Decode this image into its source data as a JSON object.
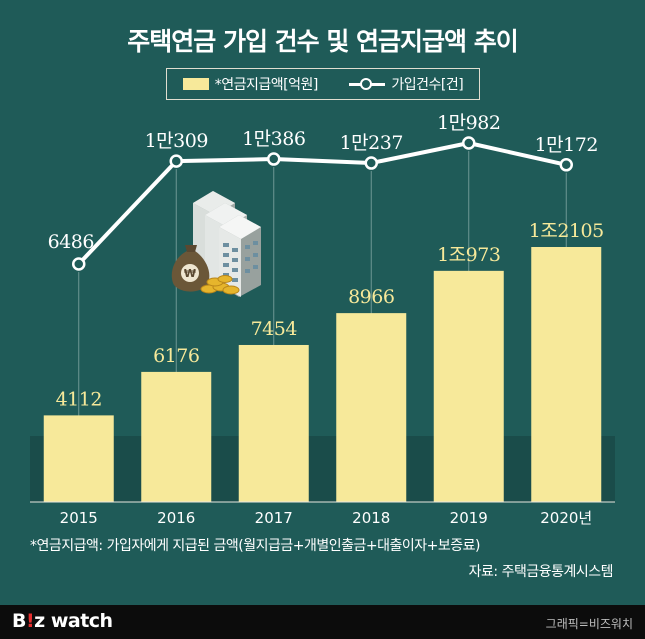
{
  "title": "주택연금 가입 건수 및 연금지급액 추이",
  "legend": {
    "bar_label": "*연금지급액[억원]",
    "line_label": "가입건수[건]"
  },
  "footnote": "*연금지급액: 가입자에게 지급된 금액(월지급금+개별인출금+대출이자+보증료)",
  "source": "자료: 주택금융통계시스템",
  "branding": {
    "logo_main": "B",
    "logo_accent": "!",
    "logo_rest": "z watch",
    "credit": "그래픽=비즈워치"
  },
  "colors": {
    "background": "#1f5b58",
    "band": "#1a4c4a",
    "bar": "#f7e99a",
    "line": "#ffffff",
    "label": "#f7e99a"
  },
  "chart_data": {
    "type": "bar",
    "categories": [
      "2015",
      "2016",
      "2017",
      "2018",
      "2019",
      "2020년"
    ],
    "series": [
      {
        "name": "*연금지급액[억원]",
        "type": "bar",
        "values": [
          4112,
          6176,
          7454,
          8966,
          10973,
          12105
        ],
        "labels": [
          "4112",
          "6176",
          "7454",
          "8966",
          "1조973",
          "1조2105"
        ]
      },
      {
        "name": "가입건수[건]",
        "type": "line",
        "values": [
          6486,
          10309,
          10386,
          10237,
          10982,
          10172
        ],
        "labels": [
          "6486",
          "1만309",
          "1만386",
          "1만237",
          "1만982",
          "1만172"
        ]
      }
    ],
    "grid": false,
    "legend_position": "top-center"
  }
}
